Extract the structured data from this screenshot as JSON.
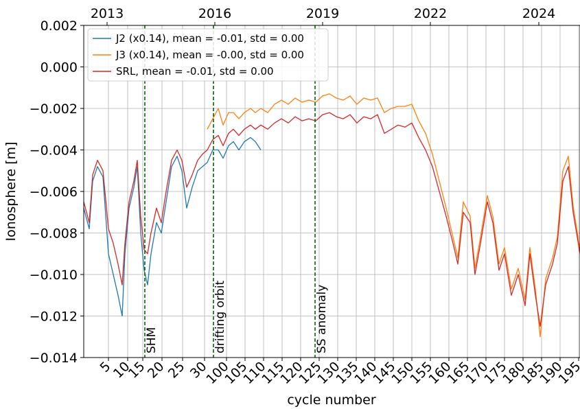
{
  "chart_data": {
    "type": "line",
    "y_label": "Ionosphere [m]",
    "x_label": "cycle number",
    "x": [
      0,
      8,
      13,
      20,
      28,
      36,
      43,
      50,
      56,
      60,
      66,
      73,
      78,
      83,
      88,
      93,
      98,
      106,
      113,
      120,
      128,
      136,
      143,
      150,
      158,
      166,
      173,
      180,
      188,
      196,
      203,
      211,
      218,
      226,
      234,
      243,
      250,
      258,
      268,
      278,
      288,
      298,
      308,
      318,
      328,
      338,
      348,
      358,
      368,
      378,
      388,
      398,
      408,
      418,
      428,
      438,
      448,
      458,
      468,
      478,
      488,
      498,
      508,
      518,
      528,
      538,
      545,
      553,
      563,
      570,
      578,
      588,
      596,
      605,
      613,
      623,
      633,
      643,
      650,
      658,
      665,
      673,
      683,
      690,
      698,
      706,
      713,
      723
    ],
    "series": [
      {
        "name": "J2 (x0.14), mean = -0.01, std = 0.00",
        "color": "#1f77b4",
        "values": [
          -0.0068,
          -0.0078,
          -0.0055,
          -0.0048,
          -0.0053,
          -0.009,
          -0.01,
          -0.011,
          -0.012,
          -0.009,
          -0.0068,
          -0.0058,
          -0.0048,
          -0.008,
          -0.0098,
          -0.0105,
          -0.009,
          -0.0075,
          -0.008,
          -0.0065,
          -0.0048,
          -0.0043,
          -0.005,
          -0.0068,
          -0.0058,
          -0.005,
          -0.0048,
          -0.0046,
          -0.004,
          -0.004,
          -0.0044,
          -0.0038,
          -0.0036,
          -0.004,
          -0.0036,
          -0.0034,
          -0.0036,
          -0.004,
          null,
          null,
          null,
          null,
          null,
          null,
          null,
          null,
          null,
          null,
          null,
          null,
          null,
          null,
          null,
          null,
          null,
          null,
          null,
          null,
          null,
          null,
          null,
          null,
          null,
          null,
          null,
          null,
          null,
          null,
          null,
          null,
          null,
          null,
          null,
          null,
          null,
          null,
          null,
          null,
          null,
          null,
          null,
          null,
          null,
          null,
          null,
          null,
          null,
          null
        ]
      },
      {
        "name": "J3 (x0.14), mean = -0.00, std = 0.00",
        "color": "#ff7f0e",
        "values": [
          null,
          null,
          null,
          null,
          null,
          null,
          null,
          null,
          null,
          null,
          null,
          null,
          null,
          null,
          null,
          null,
          null,
          null,
          null,
          null,
          null,
          null,
          null,
          null,
          null,
          null,
          null,
          -0.003,
          -0.0025,
          -0.002,
          -0.0028,
          -0.0022,
          -0.0022,
          -0.0025,
          -0.0022,
          -0.002,
          -0.0022,
          -0.002,
          -0.0022,
          -0.0018,
          -0.0016,
          -0.0018,
          -0.0015,
          -0.0017,
          -0.0016,
          -0.0017,
          -0.0014,
          -0.0013,
          -0.0015,
          -0.0016,
          -0.0014,
          -0.0018,
          -0.0015,
          -0.0016,
          -0.0015,
          -0.0022,
          -0.002,
          -0.0019,
          -0.0019,
          -0.0018,
          -0.0026,
          -0.0032,
          -0.0042,
          -0.0055,
          -0.0068,
          -0.0082,
          -0.0092,
          -0.0065,
          -0.0072,
          -0.0097,
          -0.0082,
          -0.0062,
          -0.0072,
          -0.0095,
          -0.0087,
          -0.0107,
          -0.0097,
          -0.0112,
          -0.0087,
          -0.0107,
          -0.013,
          -0.0102,
          -0.0092,
          -0.0082,
          -0.005,
          -0.0043,
          -0.0067,
          -0.0088
        ]
      },
      {
        "name": "SRL, mean = -0.01, std = 0.00",
        "color": "#d62728",
        "values": [
          -0.0065,
          -0.0075,
          -0.0052,
          -0.0045,
          -0.005,
          -0.0078,
          -0.0085,
          -0.0095,
          -0.0105,
          -0.0085,
          -0.0065,
          -0.0055,
          -0.0045,
          -0.0072,
          -0.0088,
          -0.009,
          -0.008,
          -0.0068,
          -0.0075,
          -0.006,
          -0.0045,
          -0.004,
          -0.0045,
          -0.0058,
          -0.0052,
          -0.0045,
          -0.0042,
          -0.004,
          -0.0035,
          -0.0033,
          -0.0038,
          -0.0032,
          -0.003,
          -0.0033,
          -0.003,
          -0.0028,
          -0.003,
          -0.0028,
          -0.003,
          -0.0027,
          -0.0025,
          -0.0027,
          -0.0024,
          -0.0026,
          -0.0025,
          -0.0026,
          -0.0023,
          -0.0022,
          -0.0024,
          -0.0025,
          -0.0023,
          -0.0027,
          -0.0024,
          -0.0025,
          -0.0023,
          -0.0032,
          -0.003,
          -0.0028,
          -0.0029,
          -0.0027,
          -0.0034,
          -0.004,
          -0.0048,
          -0.006,
          -0.0072,
          -0.0085,
          -0.0095,
          -0.007,
          -0.0075,
          -0.01,
          -0.0085,
          -0.0065,
          -0.0075,
          -0.0098,
          -0.009,
          -0.011,
          -0.01,
          -0.0115,
          -0.009,
          -0.011,
          -0.0125,
          -0.0105,
          -0.0095,
          -0.0085,
          -0.0055,
          -0.0048,
          -0.007,
          -0.009
        ]
      }
    ],
    "xlim": [
      0,
      723
    ],
    "ylim": [
      -0.014,
      0.002
    ],
    "yticks": [
      0.002,
      {
        "value": 0,
        "label": "0.000"
      },
      {
        "value": -0.002,
        "label": "−0.002"
      },
      {
        "value": -0.004,
        "label": "−0.004"
      },
      {
        "value": -0.006,
        "label": "−0.006"
      },
      {
        "value": -0.008,
        "label": "−0.008"
      },
      {
        "value": -0.01,
        "label": "−0.010"
      },
      {
        "value": -0.012,
        "label": "−0.012"
      },
      {
        "value": -0.014,
        "label": "−0.014"
      }
    ],
    "xticks": [
      {
        "value": 36,
        "label": "5"
      },
      {
        "value": 64,
        "label": "10"
      },
      {
        "value": 86,
        "label": "15"
      },
      {
        "value": 114,
        "label": "20"
      },
      {
        "value": 144,
        "label": "25"
      },
      {
        "value": 176,
        "label": "30"
      },
      {
        "value": 208,
        "label": "100"
      },
      {
        "value": 235,
        "label": "105"
      },
      {
        "value": 262,
        "label": "110"
      },
      {
        "value": 289,
        "label": "115"
      },
      {
        "value": 316,
        "label": "120"
      },
      {
        "value": 343,
        "label": "125"
      },
      {
        "value": 370,
        "label": "130"
      },
      {
        "value": 397,
        "label": "135"
      },
      {
        "value": 424,
        "label": "140"
      },
      {
        "value": 451,
        "label": "145"
      },
      {
        "value": 478,
        "label": "150"
      },
      {
        "value": 505,
        "label": "155"
      },
      {
        "value": 532,
        "label": "160"
      },
      {
        "value": 559,
        "label": "165"
      },
      {
        "value": 586,
        "label": "170"
      },
      {
        "value": 613,
        "label": "175"
      },
      {
        "value": 640,
        "label": "180"
      },
      {
        "value": 667,
        "label": "185"
      },
      {
        "value": 694,
        "label": "190"
      },
      {
        "value": 721,
        "label": "195"
      }
    ],
    "x2ticks": [
      {
        "value": 34,
        "label": "2013"
      },
      {
        "value": 191,
        "label": "2016"
      },
      {
        "value": 348,
        "label": "2019"
      },
      {
        "value": 505,
        "label": "2022"
      },
      {
        "value": 663,
        "label": "2024"
      }
    ],
    "vlines": [
      {
        "x": 89,
        "label": "SHM"
      },
      {
        "x": 189,
        "label": "drifting orbit"
      },
      {
        "x": 337,
        "label": "SS anomaly"
      }
    ],
    "vline_color": "#006400",
    "grid": true,
    "legend": "upper left"
  }
}
